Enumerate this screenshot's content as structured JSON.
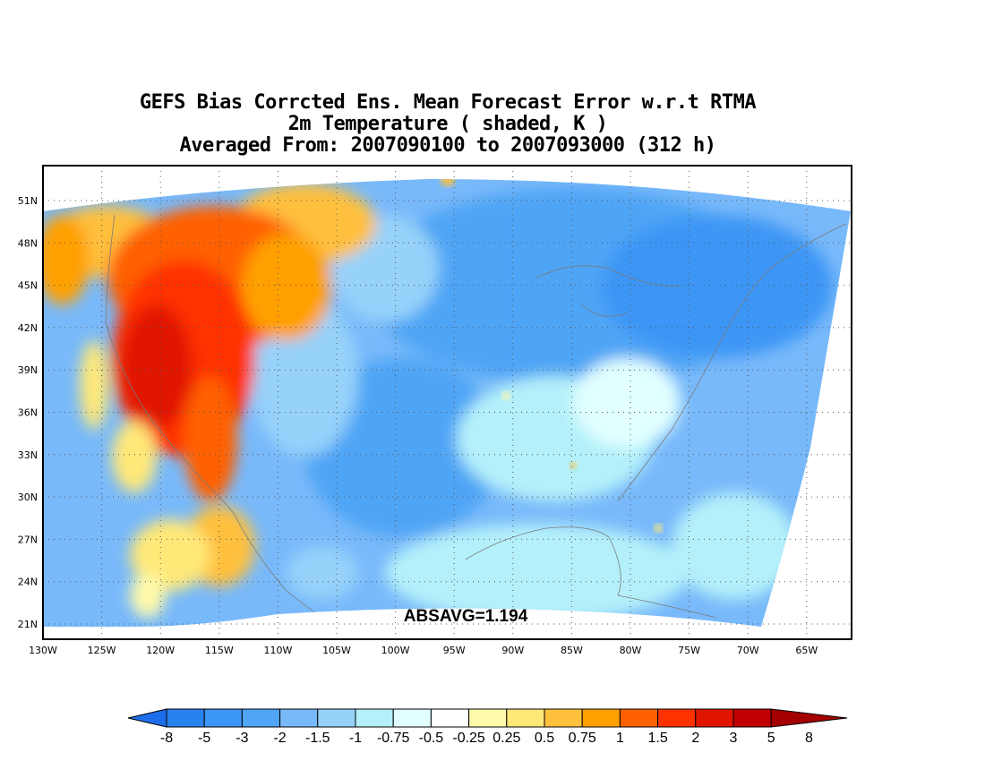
{
  "title": {
    "line1": "GEFS Bias Corrcted Ens. Mean Forecast Error w.r.t RTMA",
    "line2": "2m Temperature ( shaded, K )",
    "line3": "Averaged From: 2007090100 to 2007093000 (312 h)"
  },
  "stat_label": "ABSAVG=1.194",
  "map": {
    "lat_ticks": [
      "51N",
      "48N",
      "45N",
      "42N",
      "39N",
      "36N",
      "33N",
      "30N",
      "27N",
      "24N",
      "21N"
    ],
    "lon_ticks": [
      "130W",
      "125W",
      "120W",
      "115W",
      "110W",
      "105W",
      "100W",
      "95W",
      "90W",
      "85W",
      "80W",
      "75W",
      "70W",
      "65W"
    ],
    "grid": "dotted",
    "colors": {
      "land_line": "#7a7a7a",
      "frame": "#000000",
      "grid": "#555555"
    }
  },
  "colorbar": {
    "levels": [
      "-8",
      "-5",
      "-3",
      "-2",
      "-1.5",
      "-1",
      "-0.75",
      "-0.5",
      "-0.25",
      "0.25",
      "0.5",
      "0.75",
      "1",
      "1.5",
      "2",
      "3",
      "5",
      "8"
    ],
    "colors": [
      "#1e6eeb",
      "#2882f0",
      "#3c96f5",
      "#50a5f5",
      "#78b9fa",
      "#96d2fa",
      "#b4f0fa",
      "#e1ffff",
      "#ffffff",
      "#fffaaa",
      "#ffe878",
      "#ffc03c",
      "#ffa000",
      "#ff6000",
      "#ff3200",
      "#e11400",
      "#c00000",
      "#a50000"
    ]
  }
}
